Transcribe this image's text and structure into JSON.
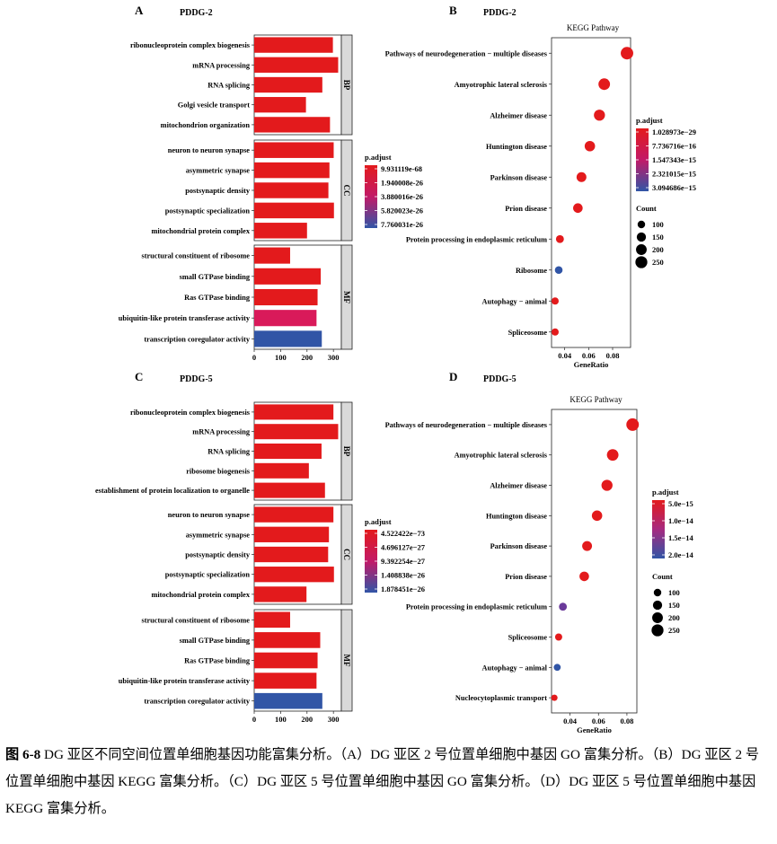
{
  "chart_data": [
    {
      "panel_letter": "A",
      "type": "bar",
      "title": "PDDG-2",
      "groups": [
        {
          "name": "BP",
          "terms": [
            "ribonucleoprotein complex biogenesis",
            "mRNA processing",
            "RNA splicing",
            "Golgi vesicle transport",
            "mitochondrion organization"
          ],
          "values": [
            298,
            318,
            258,
            196,
            287
          ],
          "colors": [
            "#e31a1c",
            "#e31a1c",
            "#e31a1c",
            "#e31a1c",
            "#e31a1c"
          ]
        },
        {
          "name": "CC",
          "terms": [
            "neuron to neuron synapse",
            "asymmetric synapse",
            "postsynaptic density",
            "postsynaptic specialization",
            "mitochondrial protein complex"
          ],
          "values": [
            301,
            285,
            281,
            302,
            200
          ],
          "colors": [
            "#e31a1c",
            "#e31a1c",
            "#e31a1c",
            "#e31a1c",
            "#e31a1c"
          ]
        },
        {
          "name": "MF",
          "terms": [
            "structural constituent of ribosome",
            "small GTPase binding",
            "Ras GTPase binding",
            "ubiquitin-like protein transferase activity",
            "transcription coregulator activity"
          ],
          "values": [
            136,
            252,
            240,
            236,
            256
          ],
          "colors": [
            "#e31a1c",
            "#e31a1c",
            "#e31a1c",
            "#d91a5a",
            "#3155a6"
          ]
        }
      ],
      "x_ticks": [
        0,
        100,
        200,
        300
      ],
      "xlim": [
        0,
        330
      ],
      "legend_title": "p.adjust",
      "legend_labels": [
        "9.931119e-68",
        "1.940008e-26",
        "3.880016e-26",
        "5.820023e-26",
        "7.760031e-26"
      ]
    },
    {
      "panel_letter": "B",
      "type": "scatter",
      "title": "PDDG-2",
      "subtitle": "KEGG Pathway",
      "xlabel": "GeneRatio",
      "terms": [
        "Pathways of neurodegeneration − multiple diseases",
        "Amyotrophic lateral sclerosis",
        "Alzheimer disease",
        "Huntington disease",
        "Parkinson disease",
        "Prion disease",
        "Protein processing in endoplasmic reticulum",
        "Ribosome",
        "Autophagy − animal",
        "Spliceosome"
      ],
      "x": [
        0.092,
        0.073,
        0.069,
        0.061,
        0.054,
        0.051,
        0.036,
        0.035,
        0.032,
        0.032
      ],
      "counts": [
        275,
        235,
        215,
        190,
        170,
        160,
        110,
        105,
        90,
        90
      ],
      "colors": [
        "#e31a1c",
        "#e31a1c",
        "#e31a1c",
        "#e31a1c",
        "#e31a1c",
        "#e31a1c",
        "#e31a1c",
        "#3155a6",
        "#e31a1c",
        "#e31a1c"
      ],
      "x_ticks": [
        0.04,
        0.06,
        0.08
      ],
      "xlim": [
        0.029,
        0.095
      ],
      "legend_title": "p.adjust",
      "legend_labels": [
        "1.028973e−29",
        "7.736716e−16",
        "1.547343e−15",
        "2.321015e−15",
        "3.094686e−15"
      ],
      "size_legend_title": "Count",
      "size_legend": [
        100,
        150,
        200,
        250
      ]
    },
    {
      "panel_letter": "C",
      "type": "bar",
      "title": "PDDG-5",
      "groups": [
        {
          "name": "BP",
          "terms": [
            "ribonucleoprotein complex biogenesis",
            "mRNA processing",
            "RNA splicing",
            "ribosome biogenesis",
            "establishment of protein localization to organelle"
          ],
          "values": [
            300,
            318,
            255,
            207,
            268
          ],
          "colors": [
            "#e31a1c",
            "#e31a1c",
            "#e31a1c",
            "#e31a1c",
            "#e31a1c"
          ]
        },
        {
          "name": "CC",
          "terms": [
            "neuron to neuron synapse",
            "asymmetric synapse",
            "postsynaptic density",
            "postsynaptic specialization",
            "mitochondrial protein complex"
          ],
          "values": [
            300,
            283,
            280,
            302,
            198
          ],
          "colors": [
            "#e31a1c",
            "#e31a1c",
            "#e31a1c",
            "#e31a1c",
            "#e31a1c"
          ]
        },
        {
          "name": "MF",
          "terms": [
            "structural constituent of ribosome",
            "small GTPase binding",
            "Ras GTPase binding",
            "ubiquitin-like protein transferase activity",
            "transcription coregulator activity"
          ],
          "values": [
            136,
            250,
            240,
            236,
            258
          ],
          "colors": [
            "#e31a1c",
            "#e31a1c",
            "#e31a1c",
            "#e31a1c",
            "#3155a6"
          ]
        }
      ],
      "x_ticks": [
        0,
        100,
        200,
        300
      ],
      "xlim": [
        0,
        330
      ],
      "legend_title": "p.adjust",
      "legend_labels": [
        "4.522422e−73",
        "4.696127e−27",
        "9.392254e−27",
        "1.408838e−26",
        "1.878451e−26"
      ]
    },
    {
      "panel_letter": "D",
      "type": "scatter",
      "title": "PDDG-5",
      "subtitle": "KEGG Pathway",
      "xlabel": "GeneRatio",
      "terms": [
        "Pathways of neurodegeneration − multiple diseases",
        "Amyotrophic lateral sclerosis",
        "Alzheimer disease",
        "Huntington disease",
        "Parkinson disease",
        "Prion disease",
        "Protein processing in endoplasmic reticulum",
        "Spliceosome",
        "Autophagy − animal",
        "Nucleocytoplasmic transport"
      ],
      "x": [
        0.084,
        0.07,
        0.066,
        0.059,
        0.052,
        0.05,
        0.035,
        0.032,
        0.031,
        0.029
      ],
      "counts": [
        275,
        235,
        215,
        190,
        170,
        160,
        110,
        90,
        85,
        70
      ],
      "colors": [
        "#e31a1c",
        "#e31a1c",
        "#e31a1c",
        "#e31a1c",
        "#e31a1c",
        "#e31a1c",
        "#6a3a9a",
        "#e31a1c",
        "#3155a6",
        "#e31a1c"
      ],
      "x_ticks": [
        0.04,
        0.06,
        0.08
      ],
      "xlim": [
        0.027,
        0.087
      ],
      "legend_title": "p.adjust",
      "legend_labels": [
        "5.0e−15",
        "1.0e−14",
        "1.5e−14",
        "2.0e−14"
      ],
      "size_legend_title": "Count",
      "size_legend": [
        100,
        150,
        200,
        250
      ]
    }
  ],
  "caption": {
    "label": "图 6-8",
    "text": " DG 亚区不同空间位置单细胞基因功能富集分析。（A）DG 亚区 2 号位置单细胞中基因 GO 富集分析。（B）DG 亚区 2 号位置单细胞中基因 KEGG 富集分析。（C）DG 亚区 5 号位置单细胞中基因 GO 富集分析。（D）DG 亚区 5 号位置单细胞中基因 KEGG 富集分析。"
  }
}
